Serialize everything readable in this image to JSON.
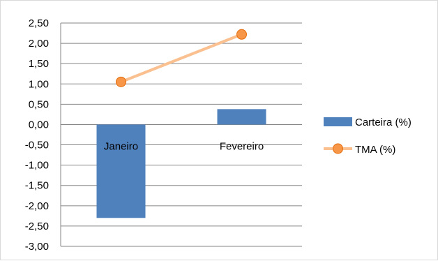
{
  "chart_data": {
    "type": "bar+line",
    "categories": [
      "Janeiro",
      "Fevereiro"
    ],
    "series": [
      {
        "name": "Carteira (%)",
        "type": "bar",
        "values": [
          -2.3,
          0.38
        ],
        "color": "#4f81bd"
      },
      {
        "name": "TMA (%)",
        "type": "line",
        "values": [
          1.05,
          2.22
        ],
        "color": "#fac090",
        "marker_color": "#f79646"
      }
    ],
    "ylim": [
      -3.0,
      2.5
    ],
    "yticks": [
      "2,50",
      "2,00",
      "1,50",
      "1,00",
      "0,50",
      "0,00",
      "-0,50",
      "-1,00",
      "-1,50",
      "-2,00",
      "-2,50",
      "-3,00"
    ],
    "grid": true,
    "legend_placement": "right",
    "title": "",
    "xlabel": "",
    "ylabel": ""
  }
}
